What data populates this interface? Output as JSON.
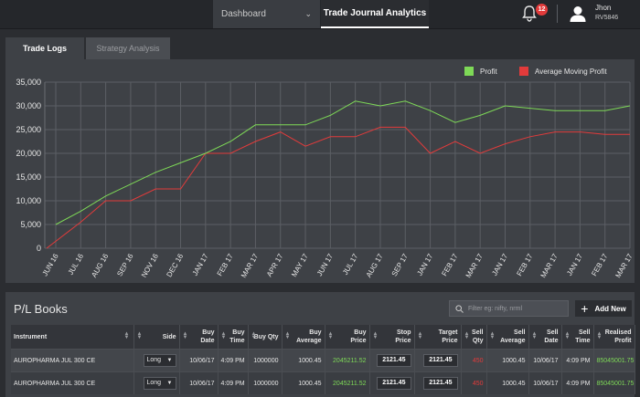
{
  "nav": {
    "dashboard_label": "Dashboard",
    "active_label": "Trade Journal Analytics",
    "notification_count": "12",
    "user_name": "Jhon",
    "user_id": "RV5846"
  },
  "tabs": [
    {
      "label": "Trade Logs",
      "active": true
    },
    {
      "label": "Strategy Analysis",
      "active": false
    }
  ],
  "chart_data": {
    "type": "line",
    "x": [
      "JUN 16",
      "JUL 16",
      "AUG 16",
      "SEP 16",
      "NOV 16",
      "DEC 16",
      "JAN 17",
      "FEB 17",
      "MAR 17",
      "APR 17",
      "MAY 17",
      "JUN 17",
      "JUL 17",
      "AUG 17",
      "SEP 17",
      "JAN 17",
      "FEB 17",
      "MAR 17",
      "JAN 17",
      "FEB 17",
      "MAR 17",
      "JAN 17",
      "FEB 17",
      "MAR 17"
    ],
    "series": [
      {
        "name": "Profit",
        "color": "#7ed957",
        "values": [
          5000,
          7800,
          11000,
          13500,
          16000,
          18000,
          20000,
          22500,
          26000,
          26000,
          26000,
          28000,
          31000,
          30000,
          31000,
          29000,
          26500,
          28000,
          30000,
          29500,
          29000,
          29000,
          29000,
          30000
        ]
      },
      {
        "name": "Average Moving Profit",
        "color": "#e23b3b",
        "values": [
          0,
          5500,
          10000,
          10000,
          12500,
          12500,
          20000,
          20000,
          22500,
          24500,
          21500,
          23500,
          23500,
          25500,
          25500,
          20000,
          22500,
          20000,
          22000,
          23500,
          24500,
          24500,
          24000,
          24000
        ]
      }
    ],
    "y_ticks": [
      "0",
      "5,000",
      "10,000",
      "15,000",
      "20,000",
      "25,000",
      "30,000",
      "35,000"
    ],
    "ylim": [
      0,
      35000
    ],
    "grid": true,
    "legend_position": "top-right"
  },
  "pl_books": {
    "title": "P/L Books",
    "filter_placeholder": "Filter eg: nifty, nrml",
    "add_label": "Add New",
    "columns": [
      "Instrument",
      "Side",
      "Buy Date",
      "Buy Time",
      "Buy Qty",
      "Buy Average",
      "Buy Price",
      "Stop Price",
      "Target Price",
      "Sell Qty",
      "Sell Average",
      "Sell Date",
      "Sell Time",
      "Realised Profit"
    ],
    "rows": [
      [
        "AUROPHARMA JUL 300 CE",
        "Long",
        "10/06/17",
        "4:09 PM",
        "1000000",
        "1000.45",
        "2045211.52",
        "2121.45",
        "2121.45",
        "450",
        "1000.45",
        "10/06/17",
        "4:09 PM",
        "85045001.75"
      ],
      [
        "AUROPHARMA JUL 300 CE",
        "Long",
        "10/06/17",
        "4:09 PM",
        "1000000",
        "1000.45",
        "2045211.52",
        "2121.45",
        "2121.45",
        "450",
        "1000.45",
        "10/06/17",
        "4:09 PM",
        "85045001.75"
      ]
    ]
  }
}
